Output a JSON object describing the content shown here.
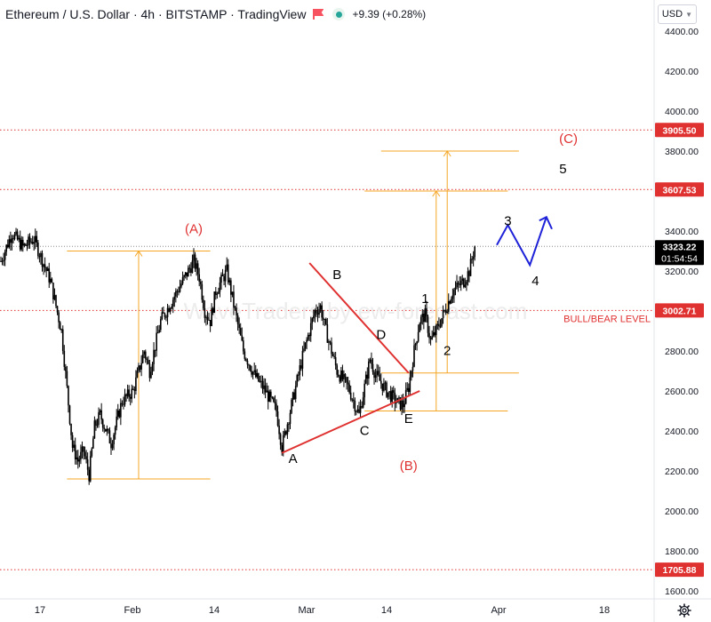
{
  "header": {
    "title": "Ethereum / U.S. Dollar · 4h · BITSTAMP · TradingView",
    "change": "+9.39 (+0.28%)"
  },
  "currency_button": "USD",
  "watermark": "WaveTraders by ew-forecast.com",
  "colors": {
    "up": "#26a69a",
    "red": "#e03131",
    "orange": "#f5a623",
    "blue": "#1e22d8",
    "candles": "#000000"
  },
  "chart_data": {
    "type": "line",
    "title": "Ethereum / U.S. Dollar · 4h · BITSTAMP · TradingView",
    "ylim": [
      1560,
      4560
    ],
    "y_ticks": [
      1600,
      1800,
      2000,
      2200,
      2400,
      2600,
      2800,
      3000,
      3200,
      3400,
      3600,
      3800,
      4000,
      4200,
      4400
    ],
    "x_ticks": [
      "17",
      "Feb",
      "14",
      "Mar",
      "14",
      "Apr",
      "18"
    ],
    "price_path": [
      {
        "d": 0,
        "p": 3250
      },
      {
        "d": 2,
        "p": 3390
      },
      {
        "d": 4,
        "p": 3320
      },
      {
        "d": 6,
        "p": 3360
      },
      {
        "d": 9,
        "p": 3150
      },
      {
        "d": 11,
        "p": 2900
      },
      {
        "d": 13,
        "p": 2320
      },
      {
        "d": 14,
        "p": 2250
      },
      {
        "d": 15,
        "p": 2300
      },
      {
        "d": 16,
        "p": 2180
      },
      {
        "d": 17,
        "p": 2420
      },
      {
        "d": 18,
        "p": 2480
      },
      {
        "d": 20,
        "p": 2340
      },
      {
        "d": 22,
        "p": 2550
      },
      {
        "d": 24,
        "p": 2600
      },
      {
        "d": 26,
        "p": 2800
      },
      {
        "d": 27,
        "p": 2700
      },
      {
        "d": 29,
        "p": 2950
      },
      {
        "d": 31,
        "p": 3050
      },
      {
        "d": 33,
        "p": 3150
      },
      {
        "d": 35,
        "p": 3250
      },
      {
        "d": 36,
        "p": 3170
      },
      {
        "d": 37,
        "p": 3000
      },
      {
        "d": 38,
        "p": 2950
      },
      {
        "d": 39,
        "p": 3100
      },
      {
        "d": 41,
        "p": 3200
      },
      {
        "d": 43,
        "p": 2930
      },
      {
        "d": 44,
        "p": 2800
      },
      {
        "d": 46,
        "p": 2680
      },
      {
        "d": 48,
        "p": 2600
      },
      {
        "d": 50,
        "p": 2500
      },
      {
        "d": 51,
        "p": 2320
      },
      {
        "d": 53,
        "p": 2560
      },
      {
        "d": 55,
        "p": 2800
      },
      {
        "d": 57,
        "p": 3000
      },
      {
        "d": 58,
        "p": 3020
      },
      {
        "d": 59,
        "p": 2900
      },
      {
        "d": 61,
        "p": 2700
      },
      {
        "d": 63,
        "p": 2620
      },
      {
        "d": 65,
        "p": 2480
      },
      {
        "d": 66,
        "p": 2620
      },
      {
        "d": 67,
        "p": 2760
      },
      {
        "d": 68,
        "p": 2680
      },
      {
        "d": 70,
        "p": 2600
      },
      {
        "d": 72,
        "p": 2540
      },
      {
        "d": 73,
        "p": 2530
      },
      {
        "d": 74,
        "p": 2620
      },
      {
        "d": 75,
        "p": 2800
      },
      {
        "d": 76,
        "p": 2950
      },
      {
        "d": 77,
        "p": 2980
      },
      {
        "d": 78,
        "p": 2850
      },
      {
        "d": 79,
        "p": 2900
      },
      {
        "d": 81,
        "p": 3030
      },
      {
        "d": 82,
        "p": 3100
      },
      {
        "d": 84,
        "p": 3150
      },
      {
        "d": 85,
        "p": 3200
      },
      {
        "d": 86,
        "p": 3323
      }
    ],
    "horizontal_levels": [
      {
        "value": 3905.5,
        "label": "3905.50",
        "style": "dotted",
        "color": "#e03131"
      },
      {
        "value": 3607.53,
        "label": "3607.53",
        "style": "dotted",
        "color": "#e03131"
      },
      {
        "value": 3002.71,
        "label": "3002.71",
        "style": "dotted",
        "color": "#e03131",
        "note": "BULL/BEAR LEVEL"
      },
      {
        "value": 1705.88,
        "label": "1705.88",
        "style": "dotted",
        "color": "#e03131"
      }
    ],
    "last_price": {
      "label": "3323.22",
      "countdown": "01:54:54"
    },
    "wave_labels": [
      {
        "text": "(A)",
        "d": 35,
        "p": 3390,
        "color": "#e03131"
      },
      {
        "text": "(B)",
        "d": 74,
        "p": 2205,
        "color": "#e03131"
      },
      {
        "text": "(C)",
        "d": 103,
        "p": 3840,
        "color": "#e03131"
      },
      {
        "text": "A",
        "d": 53,
        "p": 2240,
        "color": "#000000"
      },
      {
        "text": "B",
        "d": 61,
        "p": 3160,
        "color": "#000000"
      },
      {
        "text": "C",
        "d": 66,
        "p": 2380,
        "color": "#000000"
      },
      {
        "text": "D",
        "d": 69,
        "p": 2860,
        "color": "#000000"
      },
      {
        "text": "E",
        "d": 74,
        "p": 2440,
        "color": "#000000"
      },
      {
        "text": "1",
        "d": 77,
        "p": 3040,
        "color": "#000000"
      },
      {
        "text": "2",
        "d": 81,
        "p": 2780,
        "color": "#000000"
      },
      {
        "text": "3",
        "d": 92,
        "p": 3430,
        "color": "#000000"
      },
      {
        "text": "4",
        "d": 97,
        "p": 3130,
        "color": "#000000"
      },
      {
        "text": "5",
        "d": 102,
        "p": 3690,
        "color": "#000000"
      }
    ],
    "trendlines": [
      {
        "from": {
          "d": 56,
          "p": 3240
        },
        "to": {
          "d": 74,
          "p": 2690
        },
        "color": "#e03131"
      },
      {
        "from": {
          "d": 51,
          "p": 2290
        },
        "to": {
          "d": 76,
          "p": 2600
        },
        "color": "#e03131"
      }
    ],
    "projection": {
      "color": "#1e22d8",
      "points": [
        {
          "d": 90,
          "p": 3330
        },
        {
          "d": 92,
          "p": 3430
        },
        {
          "d": 96,
          "p": 3230
        },
        {
          "d": 99,
          "p": 3470
        },
        {
          "d": 100,
          "p": 3410
        }
      ]
    },
    "measurements": [
      {
        "color": "#f5a623",
        "d_start": 12,
        "d_end": 38,
        "d_arrow": 25,
        "low": 2160,
        "high": 3300
      },
      {
        "color": "#f5a623",
        "d_start": 66,
        "d_end": 92,
        "d_arrow": 79,
        "low": 2500,
        "high": 3600
      },
      {
        "color": "#f5a623",
        "d_start": 69,
        "d_end": 94,
        "d_arrow": 81,
        "low": 2690,
        "high": 3800
      }
    ]
  }
}
